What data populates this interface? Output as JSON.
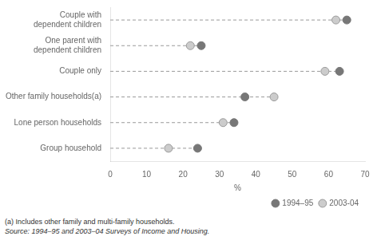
{
  "chart_data": {
    "type": "dot",
    "categories": [
      "Couple with\ndependent children",
      "One parent with\ndependent children",
      "Couple only",
      "Other family households(a)",
      "Lone person households",
      "Group household"
    ],
    "series": [
      {
        "name": "1994–95",
        "color": "#777777",
        "values": [
          65,
          25,
          63,
          37,
          34,
          24
        ]
      },
      {
        "name": "2003-04",
        "color": "#cccccc",
        "values": [
          62,
          22,
          59,
          45,
          31,
          16
        ]
      }
    ],
    "xlabel": "%",
    "xlim": [
      0,
      70
    ],
    "xticks": [
      0,
      10,
      20,
      30,
      40,
      50,
      60,
      70
    ],
    "legend": "lower right",
    "grid": false,
    "annotations": [
      "(a) Includes other family and multi-family households.",
      "Source: 1994–95 and 2003–04 Surveys of Income and Housing."
    ]
  }
}
